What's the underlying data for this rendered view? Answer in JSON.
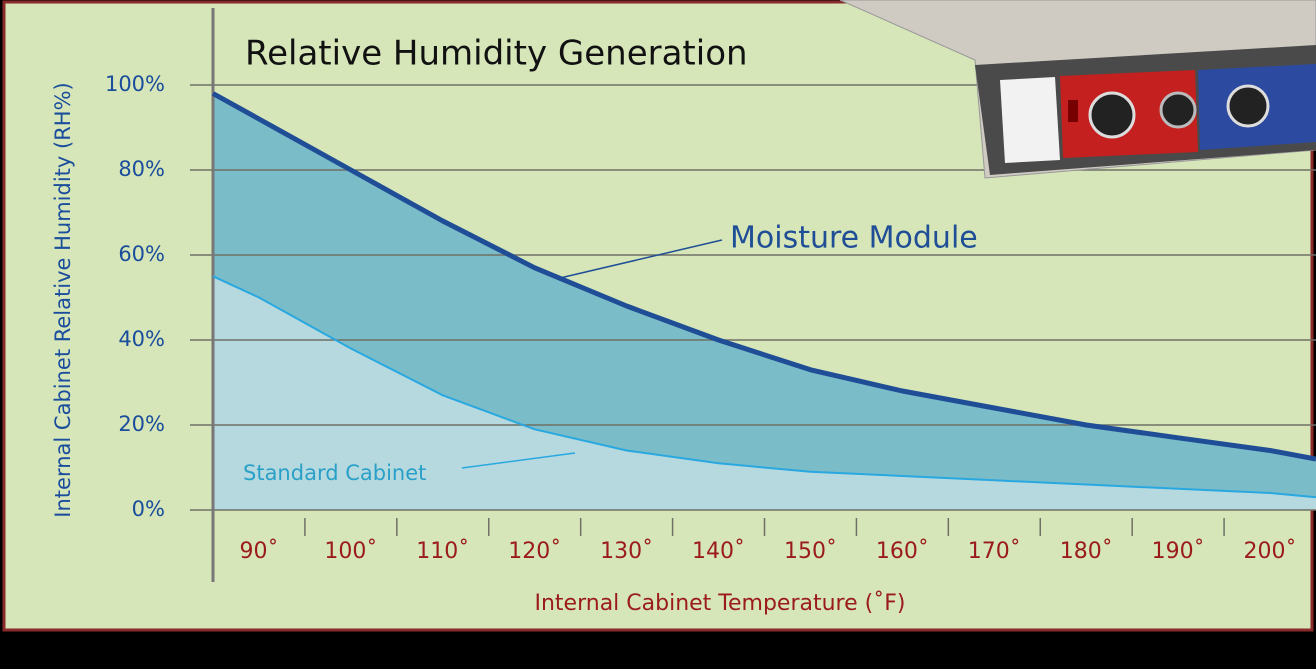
{
  "chart_data": {
    "type": "area",
    "title": "Relative Humidity Generation",
    "x_label": "Internal Cabinet Temperature (˚F)",
    "y_label": "Internal Cabinet Relative Humidity (RH%)",
    "x": [
      85,
      90,
      100,
      110,
      120,
      130,
      140,
      150,
      160,
      170,
      180,
      190,
      200,
      205
    ],
    "series": [
      {
        "name": "Moisture Module",
        "color": "#1f4e96",
        "fill": "#7bbcc9",
        "values": [
          98,
          92,
          80,
          68,
          57,
          48,
          40,
          33,
          28,
          24,
          20,
          17,
          14,
          12
        ]
      },
      {
        "name": "Standard Cabinet",
        "color": "#29a8e0",
        "fill": "#b6d9df",
        "values": [
          55,
          50,
          38,
          27,
          19,
          14,
          11,
          9,
          8,
          7,
          6,
          5,
          4,
          3
        ]
      }
    ],
    "xlim": [
      85,
      205
    ],
    "ylim": [
      0,
      100
    ],
    "xticks": [
      {
        "value": 90,
        "label": "90˚"
      },
      {
        "value": 100,
        "label": "100˚"
      },
      {
        "value": 110,
        "label": "110˚"
      },
      {
        "value": 120,
        "label": "120˚"
      },
      {
        "value": 130,
        "label": "130˚"
      },
      {
        "value": 140,
        "label": "140˚"
      },
      {
        "value": 150,
        "label": "150˚"
      },
      {
        "value": 160,
        "label": "160˚"
      },
      {
        "value": 170,
        "label": "170˚"
      },
      {
        "value": 180,
        "label": "180˚"
      },
      {
        "value": 190,
        "label": "190˚"
      },
      {
        "value": 200,
        "label": "200˚"
      }
    ],
    "yticks": [
      {
        "value": 0,
        "label": "0%"
      },
      {
        "value": 20,
        "label": "20%"
      },
      {
        "value": 40,
        "label": "40%"
      },
      {
        "value": 60,
        "label": "60%"
      },
      {
        "value": 80,
        "label": "80%"
      },
      {
        "value": 100,
        "label": "100%"
      }
    ],
    "grid": true
  }
}
